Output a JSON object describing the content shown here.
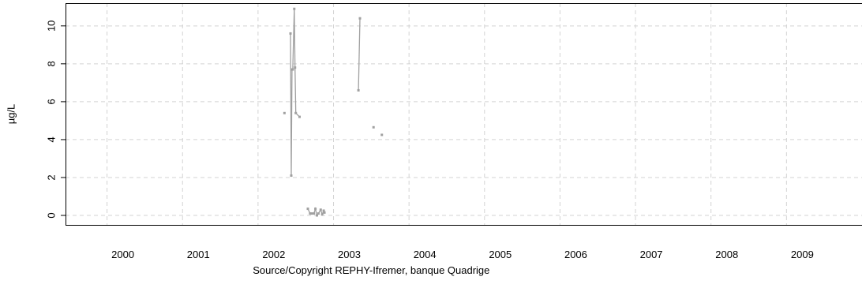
{
  "chart_data": {
    "type": "line",
    "title": "",
    "xlabel": "Source/Copyright REPHY-Ifremer, banque Quadrige",
    "ylabel": "µg/L",
    "xlim": [
      1999.45,
      2010
    ],
    "ylim": [
      -0.5,
      11.2
    ],
    "x_ticks": [
      2000,
      2001,
      2002,
      2003,
      2004,
      2005,
      2006,
      2007,
      2008,
      2009
    ],
    "x_tick_labels": [
      "2000",
      "2001",
      "2002",
      "2003",
      "2004",
      "2005",
      "2006",
      "2007",
      "2008",
      "2009"
    ],
    "y_ticks": [
      0,
      2,
      4,
      6,
      8,
      10
    ],
    "y_tick_labels": [
      "0",
      "2",
      "4",
      "6",
      "8",
      "10"
    ],
    "grid": true,
    "series": [
      {
        "color": "#a0a0a0",
        "segments": [
          {
            "x": [
              2002.35
            ],
            "y": [
              5.4
            ]
          },
          {
            "x": [
              2002.43,
              2002.44,
              2002.45,
              2002.46,
              2002.48,
              2002.49,
              2002.5,
              2002.55
            ],
            "y": [
              9.6,
              2.1,
              7.7,
              7.7,
              10.9,
              7.8,
              5.4,
              5.2
            ]
          },
          {
            "x": [
              2002.66,
              2002.69,
              2002.71,
              2002.74,
              2002.76,
              2002.78,
              2002.8,
              2002.83,
              2002.85,
              2002.87,
              2002.88
            ],
            "y": [
              0.35,
              0.1,
              0.1,
              0.1,
              0.35,
              0.0,
              0.1,
              0.3,
              0.05,
              0.25,
              0.15
            ]
          },
          {
            "x": [
              2003.33,
              2003.35
            ],
            "y": [
              6.6,
              10.4
            ]
          },
          {
            "x": [
              2003.53
            ],
            "y": [
              4.65
            ]
          },
          {
            "x": [
              2003.64
            ],
            "y": [
              4.25
            ]
          }
        ]
      }
    ]
  }
}
